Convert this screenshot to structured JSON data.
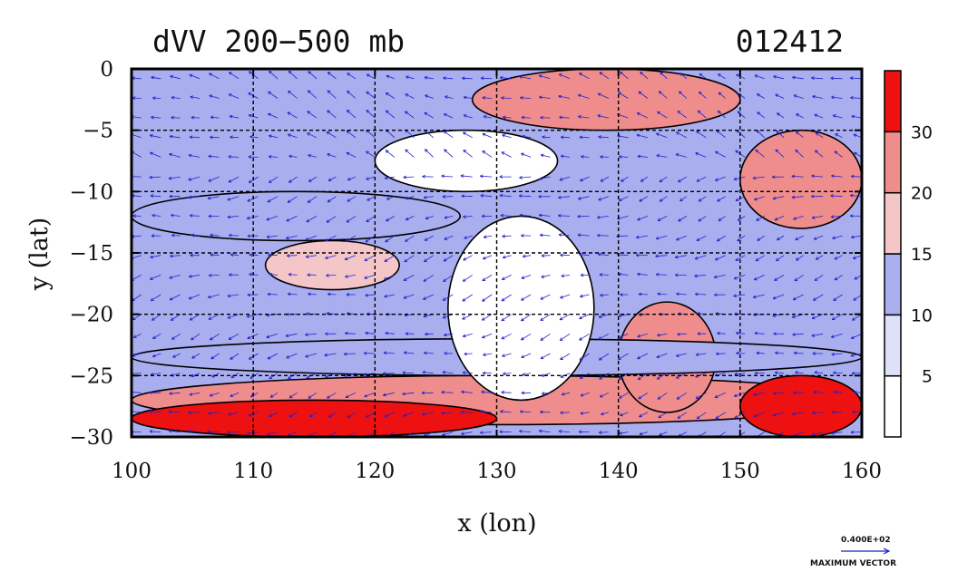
{
  "chart_data": {
    "type": "heatmap",
    "title": "dVV 200−500 mb",
    "title_right": "012412",
    "xlabel": "x (lon)",
    "ylabel": "y (lat)",
    "xlim": [
      100,
      160
    ],
    "ylim": [
      -30,
      0
    ],
    "x_ticks": [
      "100",
      "110",
      "120",
      "130",
      "140",
      "150",
      "160"
    ],
    "y_ticks": [
      "0",
      "−5",
      "−10",
      "−15",
      "−20",
      "−25",
      "−30"
    ],
    "grid": true,
    "colorbar": {
      "levels": [
        0,
        5,
        10,
        15,
        20,
        30,
        40
      ],
      "labels": [
        "5",
        "10",
        "15",
        "20",
        "30"
      ],
      "colors": [
        "#ffffff",
        "#dfe0fa",
        "#a9aeef",
        "#f4c6c8",
        "#ef8d8d",
        "#ee1111"
      ]
    },
    "vector_legend": {
      "value_label": "0.400E+02",
      "caption": "MAXIMUM VECTOR",
      "color": "#1a1acc"
    },
    "regions": [
      {
        "lon": [
          100,
          160
        ],
        "lat": [
          -29,
          -25
        ],
        "value": 22
      },
      {
        "lon": [
          100,
          130
        ],
        "lat": [
          -30,
          -27
        ],
        "value": 34
      },
      {
        "lon": [
          150,
          160
        ],
        "lat": [
          -30,
          -25
        ],
        "value": 34
      },
      {
        "lon": [
          128,
          150
        ],
        "lat": [
          -5,
          0
        ],
        "value": 22
      },
      {
        "lon": [
          150,
          160
        ],
        "lat": [
          -13,
          -5
        ],
        "value": 21
      },
      {
        "lon": [
          140,
          148
        ],
        "lat": [
          -28,
          -19
        ],
        "value": 22
      },
      {
        "lon": [
          111,
          122
        ],
        "lat": [
          -18,
          -14
        ],
        "value": 17
      },
      {
        "lon": [
          100,
          160
        ],
        "lat": [
          -25,
          -22
        ],
        "value": 12
      },
      {
        "lon": [
          100,
          127
        ],
        "lat": [
          -14,
          -10
        ],
        "value": 11
      },
      {
        "lon": [
          126,
          138
        ],
        "lat": [
          -27,
          -12
        ],
        "value": 3
      },
      {
        "lon": [
          120,
          135
        ],
        "lat": [
          -10,
          -5
        ],
        "value": 3
      }
    ]
  }
}
